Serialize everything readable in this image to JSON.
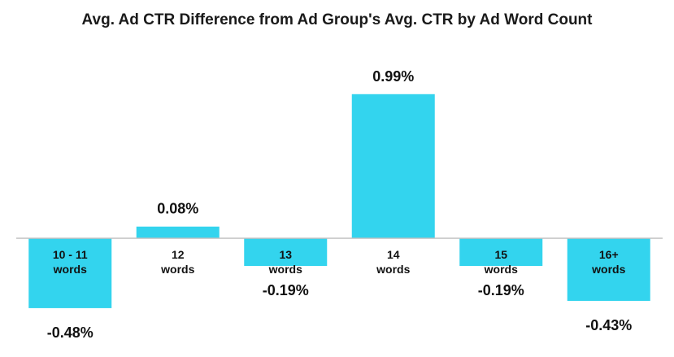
{
  "chart_data": {
    "type": "bar",
    "title": "Avg. Ad CTR Difference from Ad Group's Avg. CTR by Ad Word Count",
    "categories": [
      [
        "10 - 11",
        "words"
      ],
      [
        "12",
        "words"
      ],
      [
        "13",
        "words"
      ],
      [
        "14",
        "words"
      ],
      [
        "15",
        "words"
      ],
      [
        "16+",
        "words"
      ]
    ],
    "values": [
      -0.48,
      0.08,
      -0.19,
      0.99,
      -0.19,
      -0.43
    ],
    "data_labels": [
      "-0.48%",
      "0.08%",
      "-0.19%",
      "0.99%",
      "-0.19%",
      "-0.43%"
    ],
    "bar_color": "#33d4ee",
    "axis_color": "#c0c0c0",
    "grid": false,
    "legend": "none"
  }
}
